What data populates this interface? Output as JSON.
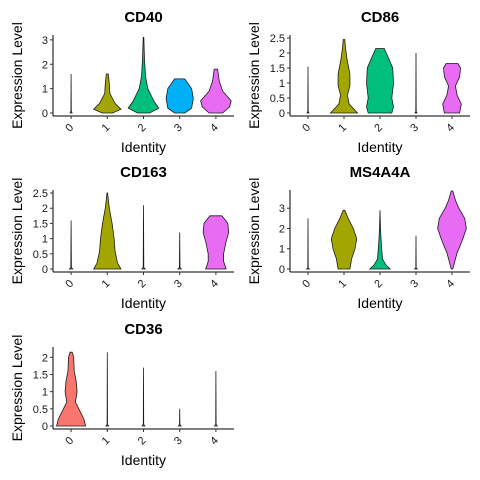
{
  "chart_data": [
    {
      "type": "violin",
      "title": "CD40",
      "xlabel": "Identity",
      "ylabel": "Expression Level",
      "categories": [
        "0",
        "1",
        "2",
        "3",
        "4"
      ],
      "ylim": [
        0,
        3.2
      ],
      "yticks": [
        0,
        1,
        2,
        3
      ],
      "series": [
        {
          "values": [
            [
              0,
              0.06
            ],
            [
              0.08,
              0.01
            ],
            [
              1.6,
              0
            ]
          ]
        },
        {
          "values": [
            [
              0,
              0.3
            ],
            [
              0.15,
              0.8
            ],
            [
              0.4,
              0.45
            ],
            [
              0.8,
              0.15
            ],
            [
              1.2,
              0.12
            ],
            [
              1.6,
              0.06
            ]
          ]
        },
        {
          "values": [
            [
              0,
              0.35
            ],
            [
              0.2,
              0.9
            ],
            [
              0.5,
              0.6
            ],
            [
              1.0,
              0.25
            ],
            [
              1.5,
              0.12
            ],
            [
              2.2,
              0.06
            ],
            [
              3.1,
              0.02
            ]
          ]
        },
        {
          "values": [
            [
              0,
              0.3
            ],
            [
              0.2,
              0.7
            ],
            [
              0.6,
              0.8
            ],
            [
              1.0,
              0.7
            ],
            [
              1.4,
              0.3
            ]
          ]
        },
        {
          "values": [
            [
              0,
              0.4
            ],
            [
              0.25,
              0.8
            ],
            [
              0.5,
              0.9
            ],
            [
              0.9,
              0.4
            ],
            [
              1.3,
              0.2
            ],
            [
              1.8,
              0.1
            ]
          ]
        }
      ],
      "colors": [
        "#F8766D",
        "#A3A500",
        "#00BF7D",
        "#00B0F6",
        "#E76BF3"
      ]
    },
    {
      "type": "violin",
      "title": "CD86",
      "xlabel": "Identity",
      "ylabel": "Expression Level",
      "categories": [
        "0",
        "1",
        "2",
        "3",
        "4"
      ],
      "ylim": [
        0,
        2.6
      ],
      "yticks": [
        0,
        0.5,
        1,
        1.5,
        2,
        2.5
      ],
      "series": [
        {
          "values": [
            [
              0,
              0.06
            ],
            [
              0.05,
              0.01
            ],
            [
              1.55,
              0
            ]
          ]
        },
        {
          "values": [
            [
              0,
              0.8
            ],
            [
              0.15,
              0.55
            ],
            [
              0.3,
              0.3
            ],
            [
              0.6,
              0.2
            ],
            [
              0.9,
              0.35
            ],
            [
              1.3,
              0.35
            ],
            [
              1.8,
              0.18
            ],
            [
              2.2,
              0.08
            ],
            [
              2.45,
              0.05
            ]
          ]
        },
        {
          "values": [
            [
              0,
              0.7
            ],
            [
              0.2,
              0.8
            ],
            [
              0.5,
              0.7
            ],
            [
              1.0,
              0.8
            ],
            [
              1.5,
              0.75
            ],
            [
              1.9,
              0.45
            ],
            [
              2.15,
              0.25
            ]
          ]
        },
        {
          "values": [
            [
              0,
              0.06
            ],
            [
              0.05,
              0.01
            ],
            [
              2.0,
              0
            ]
          ]
        },
        {
          "values": [
            [
              0,
              0.45
            ],
            [
              0.3,
              0.55
            ],
            [
              0.6,
              0.3
            ],
            [
              0.9,
              0.2
            ],
            [
              1.2,
              0.45
            ],
            [
              1.5,
              0.5
            ],
            [
              1.65,
              0.35
            ]
          ]
        }
      ],
      "colors": [
        "#F8766D",
        "#A3A500",
        "#00BF7D",
        "#00B0F6",
        "#E76BF3"
      ]
    },
    {
      "type": "violin",
      "title": "CD163",
      "xlabel": "Identity",
      "ylabel": "Expression Level",
      "categories": [
        "0",
        "1",
        "2",
        "3",
        "4"
      ],
      "ylim": [
        0,
        2.6
      ],
      "yticks": [
        0,
        0.5,
        1,
        1.5,
        2,
        2.5
      ],
      "series": [
        {
          "values": [
            [
              0,
              0.1
            ],
            [
              0.05,
              0.02
            ],
            [
              1.6,
              0
            ]
          ]
        },
        {
          "values": [
            [
              0,
              0.8
            ],
            [
              0.2,
              0.6
            ],
            [
              0.6,
              0.45
            ],
            [
              1.0,
              0.4
            ],
            [
              1.5,
              0.28
            ],
            [
              2.0,
              0.12
            ],
            [
              2.5,
              0.02
            ]
          ]
        },
        {
          "values": [
            [
              0,
              0.1
            ],
            [
              0.05,
              0.02
            ],
            [
              2.1,
              0
            ]
          ]
        },
        {
          "values": [
            [
              0,
              0.1
            ],
            [
              0.05,
              0.02
            ],
            [
              1.2,
              0
            ]
          ]
        },
        {
          "values": [
            [
              0,
              0.6
            ],
            [
              0.25,
              0.45
            ],
            [
              0.5,
              0.45
            ],
            [
              0.9,
              0.6
            ],
            [
              1.2,
              0.75
            ],
            [
              1.5,
              0.7
            ],
            [
              1.75,
              0.35
            ]
          ]
        }
      ],
      "colors": [
        "#F8766D",
        "#A3A500",
        "#00BF7D",
        "#00B0F6",
        "#E76BF3"
      ]
    },
    {
      "type": "violin",
      "title": "MS4A4A",
      "xlabel": "Identity",
      "ylabel": "Expression Level",
      "categories": [
        "0",
        "1",
        "2",
        "3",
        "4"
      ],
      "ylim": [
        0,
        3.9
      ],
      "yticks": [
        0,
        1,
        2,
        3
      ],
      "series": [
        {
          "values": [
            [
              0,
              0.08
            ],
            [
              0.05,
              0.01
            ],
            [
              2.5,
              0
            ]
          ]
        },
        {
          "values": [
            [
              0,
              0.35
            ],
            [
              0.5,
              0.45
            ],
            [
              1.0,
              0.65
            ],
            [
              1.5,
              0.75
            ],
            [
              2.0,
              0.55
            ],
            [
              2.5,
              0.25
            ],
            [
              2.9,
              0.05
            ]
          ]
        },
        {
          "values": [
            [
              0,
              0.6
            ],
            [
              0.2,
              0.35
            ],
            [
              0.5,
              0.15
            ],
            [
              1.0,
              0.1
            ],
            [
              1.5,
              0.06
            ],
            [
              2.0,
              0.03
            ],
            [
              2.9,
              0
            ]
          ]
        },
        {
          "values": [
            [
              0,
              0.08
            ],
            [
              0.05,
              0.01
            ],
            [
              1.65,
              0
            ]
          ]
        },
        {
          "values": [
            [
              0,
              0.05
            ],
            [
              0.8,
              0.3
            ],
            [
              1.4,
              0.6
            ],
            [
              2.0,
              0.85
            ],
            [
              2.5,
              0.75
            ],
            [
              3.0,
              0.4
            ],
            [
              3.4,
              0.2
            ],
            [
              3.85,
              0.05
            ]
          ]
        }
      ],
      "colors": [
        "#F8766D",
        "#A3A500",
        "#00BF7D",
        "#00B0F6",
        "#E76BF3"
      ]
    },
    {
      "type": "violin",
      "title": "CD36",
      "xlabel": "Identity",
      "ylabel": "Expression Level",
      "categories": [
        "0",
        "1",
        "2",
        "3",
        "4"
      ],
      "ylim": [
        0,
        2.3
      ],
      "yticks": [
        0,
        0.5,
        1,
        1.5,
        2
      ],
      "series": [
        {
          "values": [
            [
              0,
              0.85
            ],
            [
              0.2,
              0.75
            ],
            [
              0.4,
              0.55
            ],
            [
              0.7,
              0.25
            ],
            [
              1.0,
              0.35
            ],
            [
              1.3,
              0.3
            ],
            [
              1.6,
              0.18
            ],
            [
              2.0,
              0.15
            ],
            [
              2.15,
              0.06
            ]
          ]
        },
        {
          "values": [
            [
              0,
              0.08
            ],
            [
              0.05,
              0.01
            ],
            [
              2.15,
              0
            ]
          ]
        },
        {
          "values": [
            [
              0,
              0.08
            ],
            [
              0.05,
              0.01
            ],
            [
              1.7,
              0
            ]
          ]
        },
        {
          "values": [
            [
              0,
              0.08
            ],
            [
              0.05,
              0.01
            ],
            [
              0.5,
              0
            ]
          ]
        },
        {
          "values": [
            [
              0,
              0.08
            ],
            [
              0.05,
              0.01
            ],
            [
              1.6,
              0
            ]
          ]
        }
      ],
      "colors": [
        "#F8766D",
        "#A3A500",
        "#00BF7D",
        "#00B0F6",
        "#E76BF3"
      ]
    }
  ]
}
